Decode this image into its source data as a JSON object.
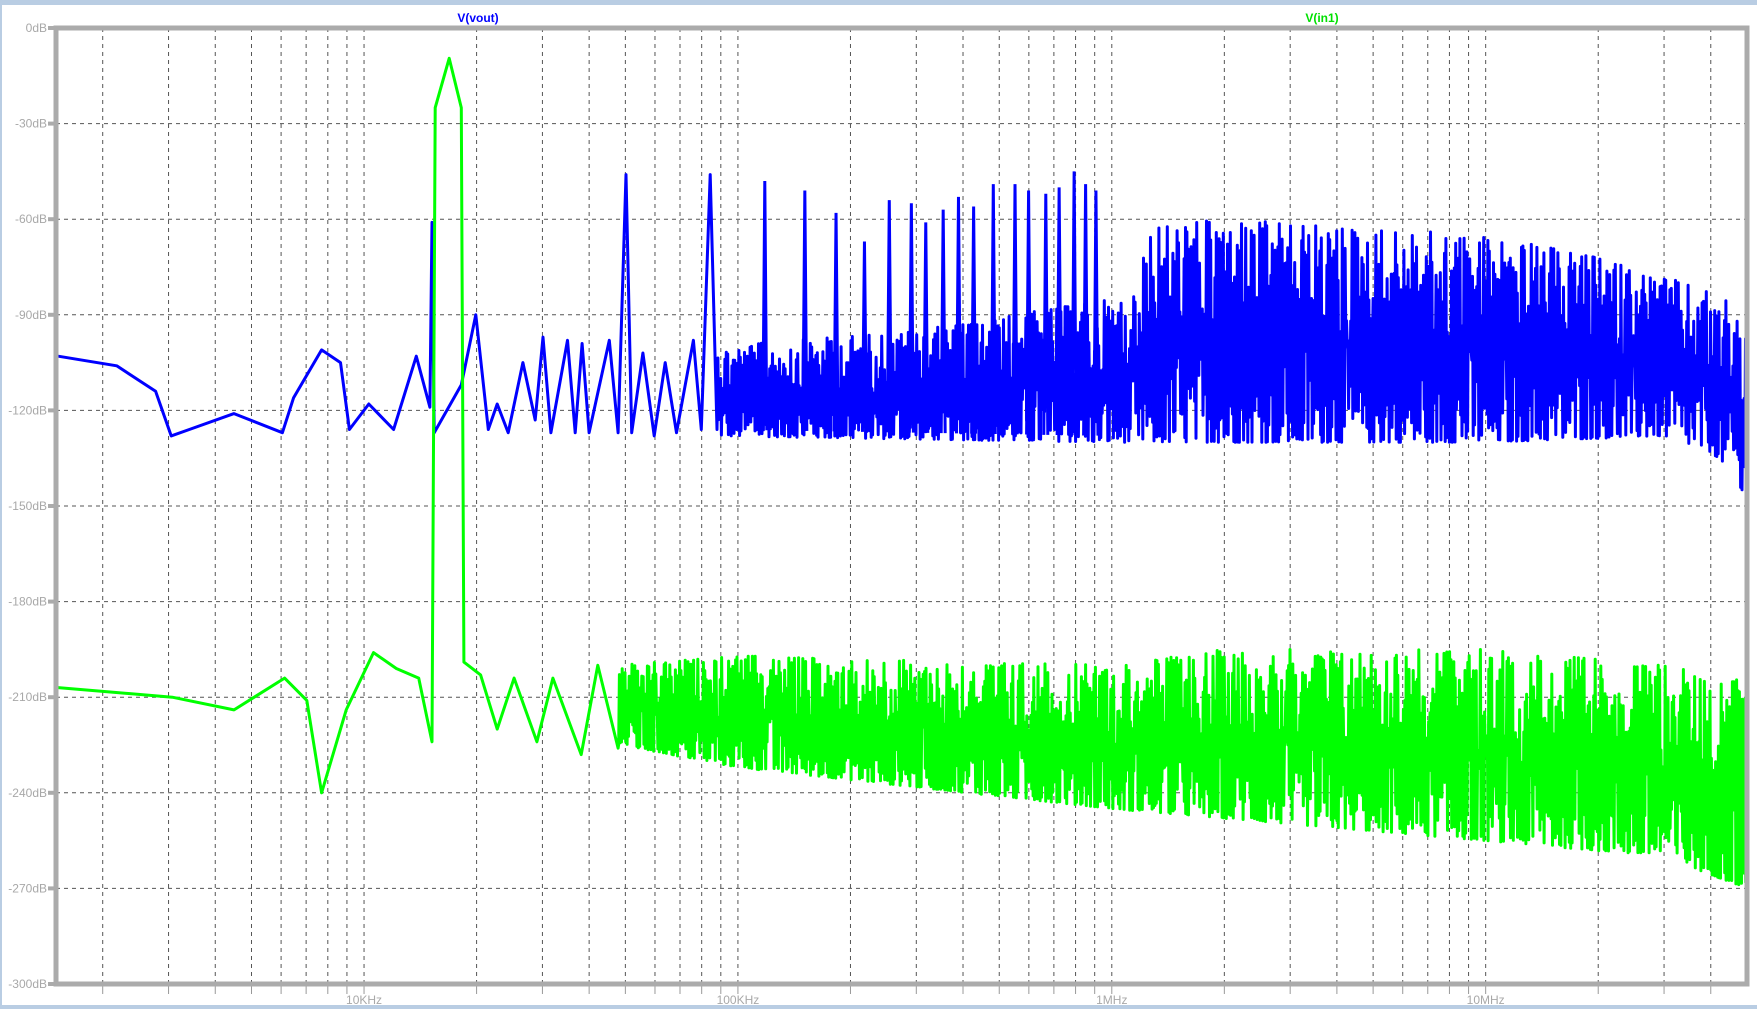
{
  "chart_data": {
    "type": "line",
    "title": "",
    "xlabel": "",
    "ylabel": "",
    "xscale": "log",
    "xlim": [
      1500,
      50000000
    ],
    "ylim": [
      -300,
      0
    ],
    "grid": true,
    "legend_placement": "top",
    "x_ticks": [
      {
        "value": 10000,
        "label": "10KHz"
      },
      {
        "value": 100000,
        "label": "100KHz"
      },
      {
        "value": 1000000,
        "label": "1MHz"
      },
      {
        "value": 10000000,
        "label": "10MHz"
      }
    ],
    "y_ticks": [
      {
        "value": 0,
        "label": "0dB"
      },
      {
        "value": -30,
        "label": "-30dB"
      },
      {
        "value": -60,
        "label": "-60dB"
      },
      {
        "value": -90,
        "label": "-90dB"
      },
      {
        "value": -120,
        "label": "-120dB"
      },
      {
        "value": -150,
        "label": "-150dB"
      },
      {
        "value": -180,
        "label": "-180dB"
      },
      {
        "value": -210,
        "label": "-210dB"
      },
      {
        "value": -240,
        "label": "-240dB"
      },
      {
        "value": -270,
        "label": "-270dB"
      },
      {
        "value": -300,
        "label": "-300dB"
      }
    ],
    "series": [
      {
        "name": "V(vout)",
        "color": "#0000ff",
        "points": [
          [
            1520,
            -103
          ],
          [
            2180,
            -106
          ],
          [
            2770,
            -114
          ],
          [
            3050,
            -128
          ],
          [
            3410,
            -126
          ],
          [
            4490,
            -121
          ],
          [
            6050,
            -127
          ],
          [
            6480,
            -116
          ],
          [
            7700,
            -101
          ],
          [
            8650,
            -105
          ],
          [
            9140,
            -126
          ],
          [
            10300,
            -118
          ],
          [
            12000,
            -126
          ],
          [
            13800,
            -103
          ],
          [
            15000,
            -119
          ],
          [
            15200,
            -61
          ],
          [
            15400,
            -127
          ],
          [
            18200,
            -112
          ],
          [
            19900,
            -90
          ],
          [
            21500,
            -126
          ],
          [
            22700,
            -118
          ],
          [
            24300,
            -127
          ],
          [
            26600,
            -105
          ],
          [
            28700,
            -123
          ],
          [
            30100,
            -97
          ],
          [
            31600,
            -127
          ],
          [
            35000,
            -98
          ],
          [
            36700,
            -127
          ],
          [
            38300,
            -99
          ],
          [
            40000,
            -127
          ],
          [
            45300,
            -98
          ],
          [
            47800,
            -127
          ],
          [
            50200,
            -46
          ],
          [
            52000,
            -127
          ],
          [
            55700,
            -102
          ],
          [
            59700,
            -128
          ],
          [
            63900,
            -105
          ],
          [
            68500,
            -127
          ],
          [
            76000,
            -98
          ],
          [
            79800,
            -126
          ],
          [
            84300,
            -46
          ],
          [
            87900,
            -126
          ]
        ],
        "harmonic_peaks": [
          [
            118000,
            -48
          ],
          [
            151000,
            -51
          ],
          [
            183000,
            -58
          ],
          [
            218000,
            -67
          ],
          [
            254000,
            -54
          ],
          [
            291000,
            -55
          ],
          [
            318000,
            -61
          ],
          [
            354000,
            -57
          ],
          [
            389000,
            -53
          ],
          [
            427000,
            -56
          ],
          [
            482000,
            -49
          ],
          [
            551000,
            -49
          ],
          [
            599000,
            -51
          ],
          [
            666000,
            -52
          ],
          [
            723000,
            -50
          ],
          [
            793000,
            -45
          ],
          [
            851000,
            -49
          ],
          [
            907000,
            -51
          ]
        ],
        "dense_band_upper": [
          [
            88000,
            -100
          ],
          [
            300000,
            -95
          ],
          [
            1000000,
            -85
          ],
          [
            1200000,
            -84
          ],
          [
            1210000,
            -62
          ],
          [
            2000000,
            -60
          ],
          [
            5000000,
            -63
          ],
          [
            10000000,
            -65
          ],
          [
            20000000,
            -72
          ],
          [
            30000000,
            -78
          ],
          [
            45000000,
            -85
          ],
          [
            50000000,
            -88
          ]
        ],
        "dense_band_lower": [
          [
            88000,
            -128
          ],
          [
            1000000,
            -130
          ],
          [
            10000000,
            -130
          ],
          [
            30000000,
            -128
          ],
          [
            40000000,
            -133
          ],
          [
            47000000,
            -140
          ],
          [
            50000000,
            -157
          ]
        ]
      },
      {
        "name": "V(in1)",
        "color": "#00ff00",
        "points": [
          [
            1520,
            -207
          ],
          [
            3070,
            -210
          ],
          [
            4490,
            -214
          ],
          [
            6130,
            -204
          ],
          [
            7030,
            -211
          ],
          [
            7700,
            -240
          ],
          [
            8960,
            -214
          ],
          [
            10600,
            -196
          ],
          [
            12200,
            -201
          ],
          [
            14000,
            -204
          ],
          [
            15200,
            -224
          ],
          [
            15500,
            -25
          ],
          [
            16900,
            -9.5
          ],
          [
            18200,
            -25
          ],
          [
            18500,
            -199
          ],
          [
            20500,
            -203
          ],
          [
            22700,
            -220
          ],
          [
            25200,
            -204
          ],
          [
            29000,
            -224
          ],
          [
            32000,
            -204
          ],
          [
            38100,
            -228
          ],
          [
            42200,
            -200
          ],
          [
            47800,
            -226
          ]
        ],
        "dense_band_upper": [
          [
            48000,
            -200
          ],
          [
            100000,
            -197
          ],
          [
            1000000,
            -200
          ],
          [
            2000000,
            -195
          ],
          [
            10000000,
            -195
          ],
          [
            30000000,
            -200
          ],
          [
            50000000,
            -205
          ]
        ],
        "dense_band_lower": [
          [
            48000,
            -225
          ],
          [
            100000,
            -232
          ],
          [
            1000000,
            -245
          ],
          [
            10000000,
            -255
          ],
          [
            30000000,
            -260
          ],
          [
            50000000,
            -270
          ]
        ]
      }
    ]
  }
}
